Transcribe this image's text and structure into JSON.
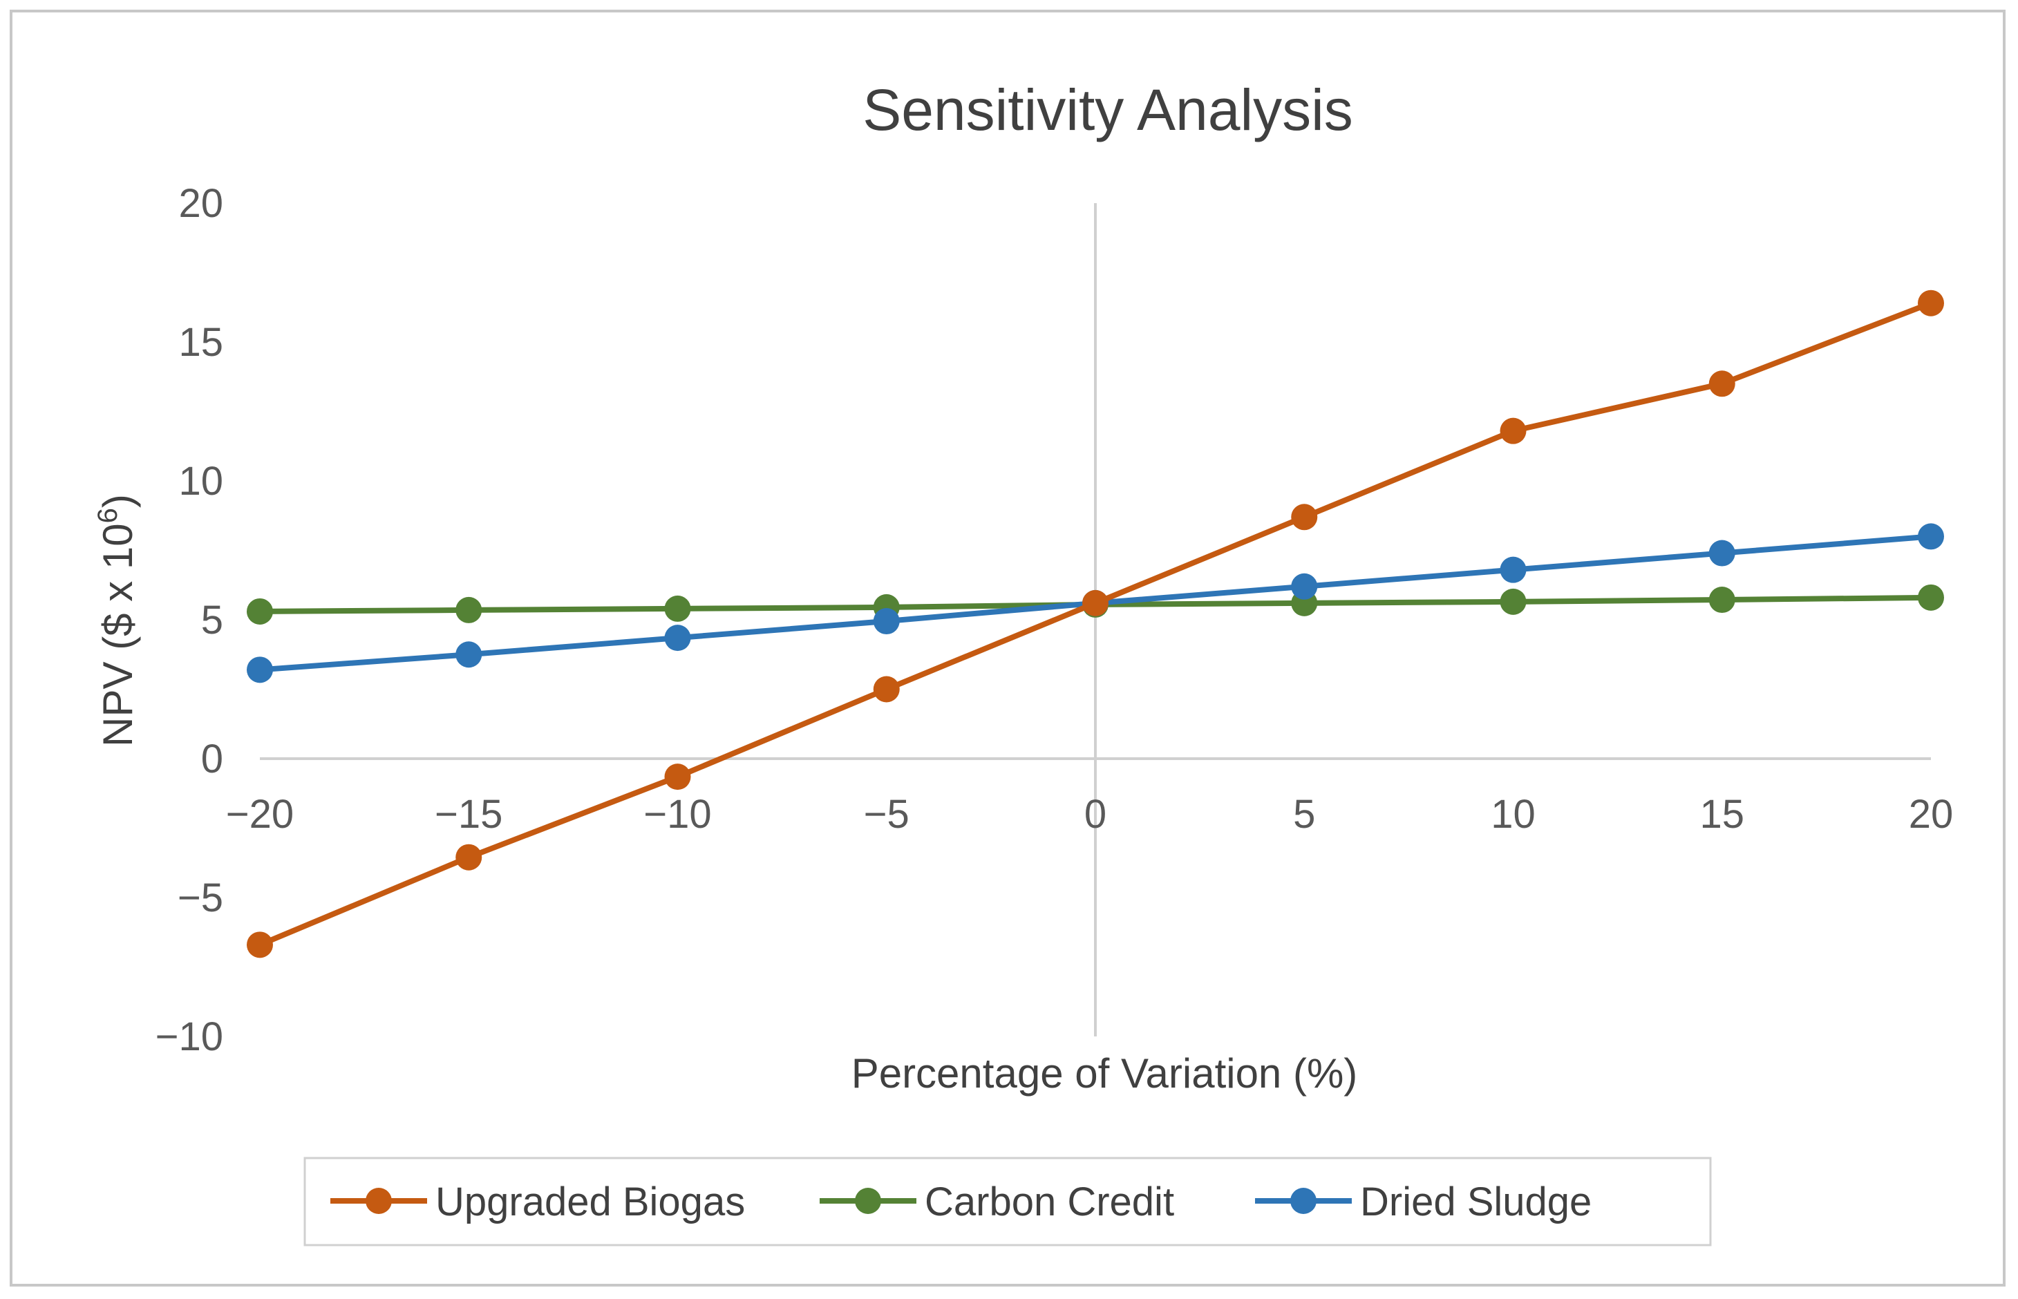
{
  "chart_data": {
    "type": "line",
    "title": "Sensitivity Analysis",
    "xlabel": "Percentage of Variation (%)",
    "ylabel_main": "NPV ($ x 10",
    "ylabel_superscript": "6",
    "ylabel_close": ")",
    "x": [
      -20,
      -15,
      -10,
      -5,
      0,
      5,
      10,
      15,
      20
    ],
    "x_tick_labels": [
      "−20",
      "−15",
      "−10",
      "−5",
      "0",
      "5",
      "10",
      "15",
      "20"
    ],
    "xlim": [
      -20,
      20
    ],
    "ylim": [
      -10,
      20
    ],
    "y_ticks": [
      20,
      15,
      10,
      5,
      0,
      -5,
      -10
    ],
    "y_tick_labels": [
      "20",
      "15",
      "10",
      "5",
      "0",
      "−5",
      "−10"
    ],
    "grid": false,
    "legend_position": "bottom",
    "series": [
      {
        "name": "Upgraded Biogas",
        "color": "#C55A11",
        "values": [
          -6.7,
          -3.55,
          -0.65,
          2.5,
          5.6,
          8.7,
          11.8,
          13.5,
          16.4
        ]
      },
      {
        "name": "Carbon Credit",
        "color": "#548235",
        "values": [
          5.3,
          5.35,
          5.4,
          5.45,
          5.55,
          5.6,
          5.65,
          5.72,
          5.8
        ]
      },
      {
        "name": "Dried Sludge",
        "color": "#2E75B6",
        "values": [
          3.2,
          3.75,
          4.35,
          4.95,
          5.6,
          6.2,
          6.8,
          7.4,
          8.0
        ]
      }
    ]
  }
}
